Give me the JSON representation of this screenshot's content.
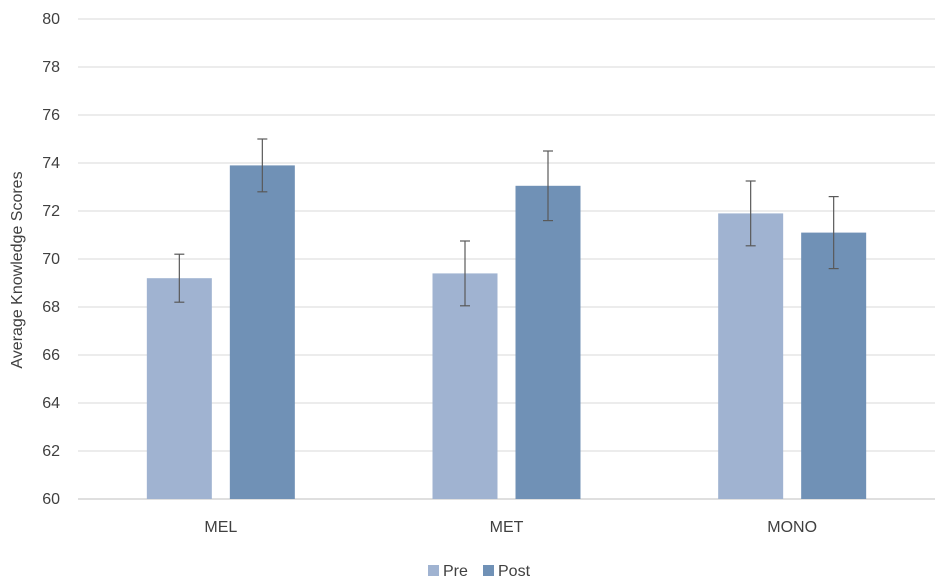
{
  "chart_data": {
    "type": "bar",
    "title": "",
    "xlabel": "",
    "ylabel": "Average Knowledge Scores",
    "ylim": [
      60,
      80
    ],
    "yticks": [
      60,
      62,
      64,
      66,
      68,
      70,
      72,
      74,
      76,
      78,
      80
    ],
    "categories": [
      "MEL",
      "MET",
      "MONO"
    ],
    "series": [
      {
        "name": "Pre",
        "color": "#a0b3d1",
        "values": [
          69.2,
          69.4,
          71.9
        ],
        "error": [
          1.0,
          1.35,
          1.35
        ]
      },
      {
        "name": "Post",
        "color": "#7091b6",
        "values": [
          73.9,
          73.05,
          71.1
        ],
        "error": [
          1.1,
          1.45,
          1.5
        ]
      }
    ],
    "grid": true,
    "legend_position": "bottom"
  }
}
